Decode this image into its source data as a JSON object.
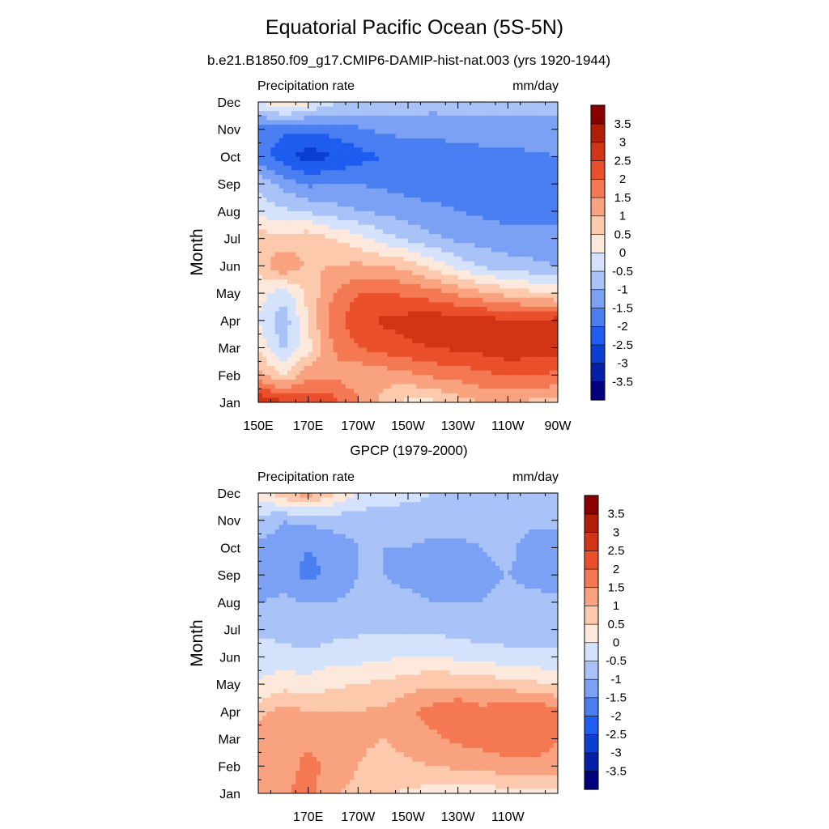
{
  "figure": {
    "title": "Equatorial Pacific Ocean (5S-5N)",
    "subtitle": "b.e21.B1850.f09_g17.CMIP6-DAMIP-hist-nat.003 (yrs 1920-1944)"
  },
  "palette": {
    "levels": [
      "-3.5",
      "-3",
      "-2.5",
      "-2",
      "-1.5",
      "-1",
      "-0.5",
      "0",
      "0.5",
      "1",
      "1.5",
      "2",
      "2.5",
      "3",
      "3.5"
    ],
    "colors": [
      "#00007f",
      "#0520a8",
      "#0b3fd4",
      "#1f5cf0",
      "#4a7ff2",
      "#7ba1f4",
      "#a9c2f7",
      "#d4e2fb",
      "#fde9dc",
      "#fcc9ad",
      "#f9a27f",
      "#f47852",
      "#e9502b",
      "#d13515",
      "#b01e08",
      "#8a0000"
    ]
  },
  "chart_data": [
    {
      "type": "heatmap",
      "title": "",
      "left_string": "Precipitation rate",
      "right_string": "mm/day",
      "ylabel": "Month",
      "xlabel": "",
      "x_ticks": [
        "150E",
        "170E",
        "170W",
        "150W",
        "130W",
        "110W",
        "90W"
      ],
      "x_tick_values": [
        150,
        170,
        190,
        210,
        230,
        250,
        270
      ],
      "y_ticks": [
        "Jan",
        "Feb",
        "Mar",
        "Apr",
        "May",
        "Jun",
        "Jul",
        "Aug",
        "Sep",
        "Oct",
        "Nov",
        "Dec"
      ],
      "xlim": [
        150,
        270
      ],
      "ylim": [
        1,
        12
      ],
      "colorbar_labels": [
        "3.5",
        "3",
        "2.5",
        "2",
        "1.5",
        "1",
        "0.5",
        "0",
        "-0.5",
        "-1",
        "-1.5",
        "-2",
        "-2.5",
        "-3",
        "-3.5"
      ],
      "lon": [
        150,
        160,
        170,
        180,
        190,
        200,
        210,
        220,
        230,
        240,
        250,
        260,
        270
      ],
      "months": [
        1,
        2,
        3,
        4,
        5,
        6,
        7,
        8,
        9,
        10,
        11,
        12
      ],
      "values": [
        [
          3.0,
          2.6,
          2.4,
          2.2,
          1.6,
          0.8,
          0.3,
          0.4,
          0.8,
          1.0,
          1.0,
          0.9,
          0.9
        ],
        [
          1.2,
          0.4,
          1.4,
          1.4,
          1.1,
          1.2,
          1.4,
          1.6,
          1.7,
          1.9,
          2.0,
          2.0,
          1.9
        ],
        [
          0.4,
          -0.6,
          0.3,
          1.5,
          2.0,
          2.2,
          2.4,
          2.5,
          2.6,
          2.7,
          2.9,
          2.8,
          2.7
        ],
        [
          0.0,
          -0.9,
          0.6,
          1.8,
          2.3,
          2.6,
          2.7,
          2.8,
          2.8,
          2.7,
          2.6,
          2.6,
          2.7
        ],
        [
          0.2,
          -0.3,
          0.6,
          1.5,
          2.0,
          2.0,
          1.9,
          1.7,
          1.4,
          1.1,
          0.8,
          0.6,
          0.4
        ],
        [
          0.6,
          1.5,
          0.9,
          1.0,
          1.1,
          1.0,
          0.8,
          0.3,
          -0.2,
          -0.6,
          -0.8,
          -0.9,
          -1.0
        ],
        [
          0.8,
          0.6,
          0.9,
          0.5,
          0.2,
          -0.3,
          -0.6,
          -0.9,
          -1.1,
          -1.2,
          -1.3,
          -1.3,
          -1.3
        ],
        [
          -0.2,
          -0.4,
          -0.6,
          -0.8,
          -1.0,
          -1.1,
          -1.3,
          -1.4,
          -1.5,
          -1.6,
          -1.7,
          -1.7,
          -1.7
        ],
        [
          -0.6,
          -1.2,
          -1.6,
          -1.5,
          -1.5,
          -1.6,
          -1.7,
          -1.7,
          -1.8,
          -1.9,
          -1.8,
          -1.7,
          -1.7
        ],
        [
          -1.8,
          -2.3,
          -2.8,
          -2.5,
          -2.2,
          -2.0,
          -1.9,
          -1.9,
          -1.8,
          -1.7,
          -1.7,
          -1.6,
          -1.5
        ],
        [
          -1.8,
          -1.9,
          -1.9,
          -1.8,
          -1.6,
          -1.4,
          -1.3,
          -1.3,
          -1.2,
          -1.2,
          -1.1,
          -1.1,
          -1.1
        ],
        [
          0.0,
          0.6,
          0.2,
          -0.4,
          -0.5,
          -0.6,
          -0.7,
          -0.8,
          -0.8,
          -0.8,
          -0.9,
          -0.9,
          -0.9
        ]
      ]
    },
    {
      "type": "heatmap",
      "title": "GPCP (1979-2000)",
      "left_string": "Precipitation rate",
      "right_string": "mm/day",
      "ylabel": "Month",
      "xlabel": "",
      "x_ticks": [
        "170E",
        "170W",
        "150W",
        "130W",
        "110W"
      ],
      "x_tick_values": [
        170,
        190,
        210,
        230,
        250
      ],
      "y_ticks": [
        "Jan",
        "Feb",
        "Mar",
        "Apr",
        "May",
        "Jun",
        "Jul",
        "Aug",
        "Sep",
        "Oct",
        "Nov",
        "Dec"
      ],
      "xlim": [
        150,
        270
      ],
      "ylim": [
        1,
        12
      ],
      "colorbar_labels": [
        "3.5",
        "3",
        "2.5",
        "2",
        "1.5",
        "1",
        "0.5",
        "0",
        "-0.5",
        "-1",
        "-1.5",
        "-2",
        "-2.5",
        "-3",
        "-3.5"
      ],
      "lon": [
        150,
        160,
        170,
        180,
        190,
        200,
        210,
        220,
        230,
        240,
        250,
        260,
        270
      ],
      "months": [
        1,
        2,
        3,
        4,
        5,
        6,
        7,
        8,
        9,
        10,
        11,
        12
      ],
      "values": [
        [
          1.2,
          1.4,
          1.7,
          1.1,
          0.8,
          0.6,
          0.4,
          0.3,
          0.2,
          0.2,
          0.3,
          0.3,
          0.4
        ],
        [
          1.1,
          1.3,
          1.6,
          1.4,
          1.0,
          0.8,
          0.9,
          1.0,
          1.1,
          1.2,
          1.3,
          1.4,
          1.4
        ],
        [
          1.3,
          1.5,
          1.4,
          1.2,
          1.1,
          1.0,
          1.2,
          1.4,
          1.6,
          1.7,
          1.9,
          1.7,
          1.5
        ],
        [
          0.8,
          1.2,
          1.0,
          1.0,
          1.0,
          1.1,
          1.4,
          1.7,
          2.0,
          1.7,
          2.0,
          2.0,
          1.6
        ],
        [
          0.0,
          0.3,
          0.2,
          0.4,
          0.5,
          0.6,
          0.8,
          0.9,
          0.9,
          0.8,
          0.7,
          0.6,
          0.5
        ],
        [
          -0.2,
          -0.3,
          -0.4,
          -0.2,
          -0.2,
          -0.1,
          0.0,
          0.0,
          -0.1,
          -0.2,
          -0.3,
          -0.4,
          -0.4
        ],
        [
          -0.6,
          -0.7,
          -0.8,
          -0.7,
          -0.6,
          -0.6,
          -0.6,
          -0.6,
          -0.7,
          -0.8,
          -0.8,
          -0.8,
          -0.8
        ],
        [
          -1.0,
          -0.9,
          -1.0,
          -1.0,
          -0.9,
          -0.9,
          -0.9,
          -1.0,
          -1.0,
          -1.0,
          -0.9,
          -0.9,
          -0.9
        ],
        [
          -1.4,
          -1.2,
          -1.7,
          -1.3,
          -1.0,
          -1.0,
          -1.1,
          -1.2,
          -1.2,
          -1.1,
          -1.0,
          -1.1,
          -1.2
        ],
        [
          -1.1,
          -1.2,
          -1.5,
          -1.3,
          -1.0,
          -1.0,
          -1.0,
          -1.2,
          -1.2,
          -1.0,
          -0.9,
          -1.2,
          -1.2
        ],
        [
          -0.7,
          -1.0,
          -0.9,
          -0.8,
          -0.8,
          -0.8,
          -0.7,
          -0.6,
          -0.6,
          -0.7,
          -0.8,
          -0.9,
          -0.9
        ],
        [
          0.2,
          0.9,
          1.3,
          0.6,
          0.0,
          -0.2,
          -0.4,
          -0.5,
          -0.5,
          -0.5,
          -0.6,
          -0.6,
          -0.6
        ]
      ]
    }
  ]
}
